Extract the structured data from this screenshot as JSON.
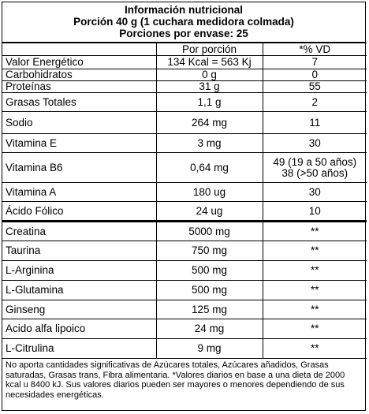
{
  "header": {
    "lines": [
      "Información nutricional",
      "Porción 40 g (1 cuchara medidora colmada)",
      "Porciones por envase: 25"
    ]
  },
  "table": {
    "columns": [
      "",
      "Por porción",
      "*% VD"
    ],
    "rows": [
      [
        "Valor Energético",
        "134 Kcal = 563 Kj",
        "7"
      ],
      [
        "Carbohidratos",
        "0 g",
        "0"
      ],
      [
        "Proteínas",
        "31 g",
        "55"
      ],
      [
        "Grasas Totales",
        "1,1 g",
        "2"
      ],
      [
        "Sodio",
        "264 mg",
        "11"
      ],
      [
        "Vitamina E",
        "3 mg",
        "30"
      ],
      [
        "Vitamina B6",
        "0,64 mg",
        [
          "49 (19 a 50 años)",
          "38 (>50 años)"
        ]
      ],
      [
        "Vitamina A",
        "180 ug",
        "30"
      ],
      [
        "Ácido Fólico",
        "24 ug",
        "10"
      ],
      [
        "Creatina",
        "5000 mg",
        "**"
      ],
      [
        "Taurina",
        "750 mg",
        "**"
      ],
      [
        "L-Arginina",
        "500 mg",
        "**"
      ],
      [
        "L-Glutamina",
        "500 mg",
        "**"
      ],
      [
        "Ginseng",
        "125 mg",
        "**"
      ],
      [
        "Acido alfa lipoico",
        "24 mg",
        "**"
      ],
      [
        "L-Citrulina",
        "9 mg",
        "**"
      ]
    ]
  },
  "footer": {
    "note": "No aporta cantidades significativas de Azúcares totales, Azúcares añadidos, Grasas saturadas, Grasas trans, Fibra alimentaria. *Valores diarios en base a una dieta de 2000 kcal u 8400 kJ. Sus valores diarios pueden ser mayores o menores dependiendo de sus necesidades energéticas."
  }
}
